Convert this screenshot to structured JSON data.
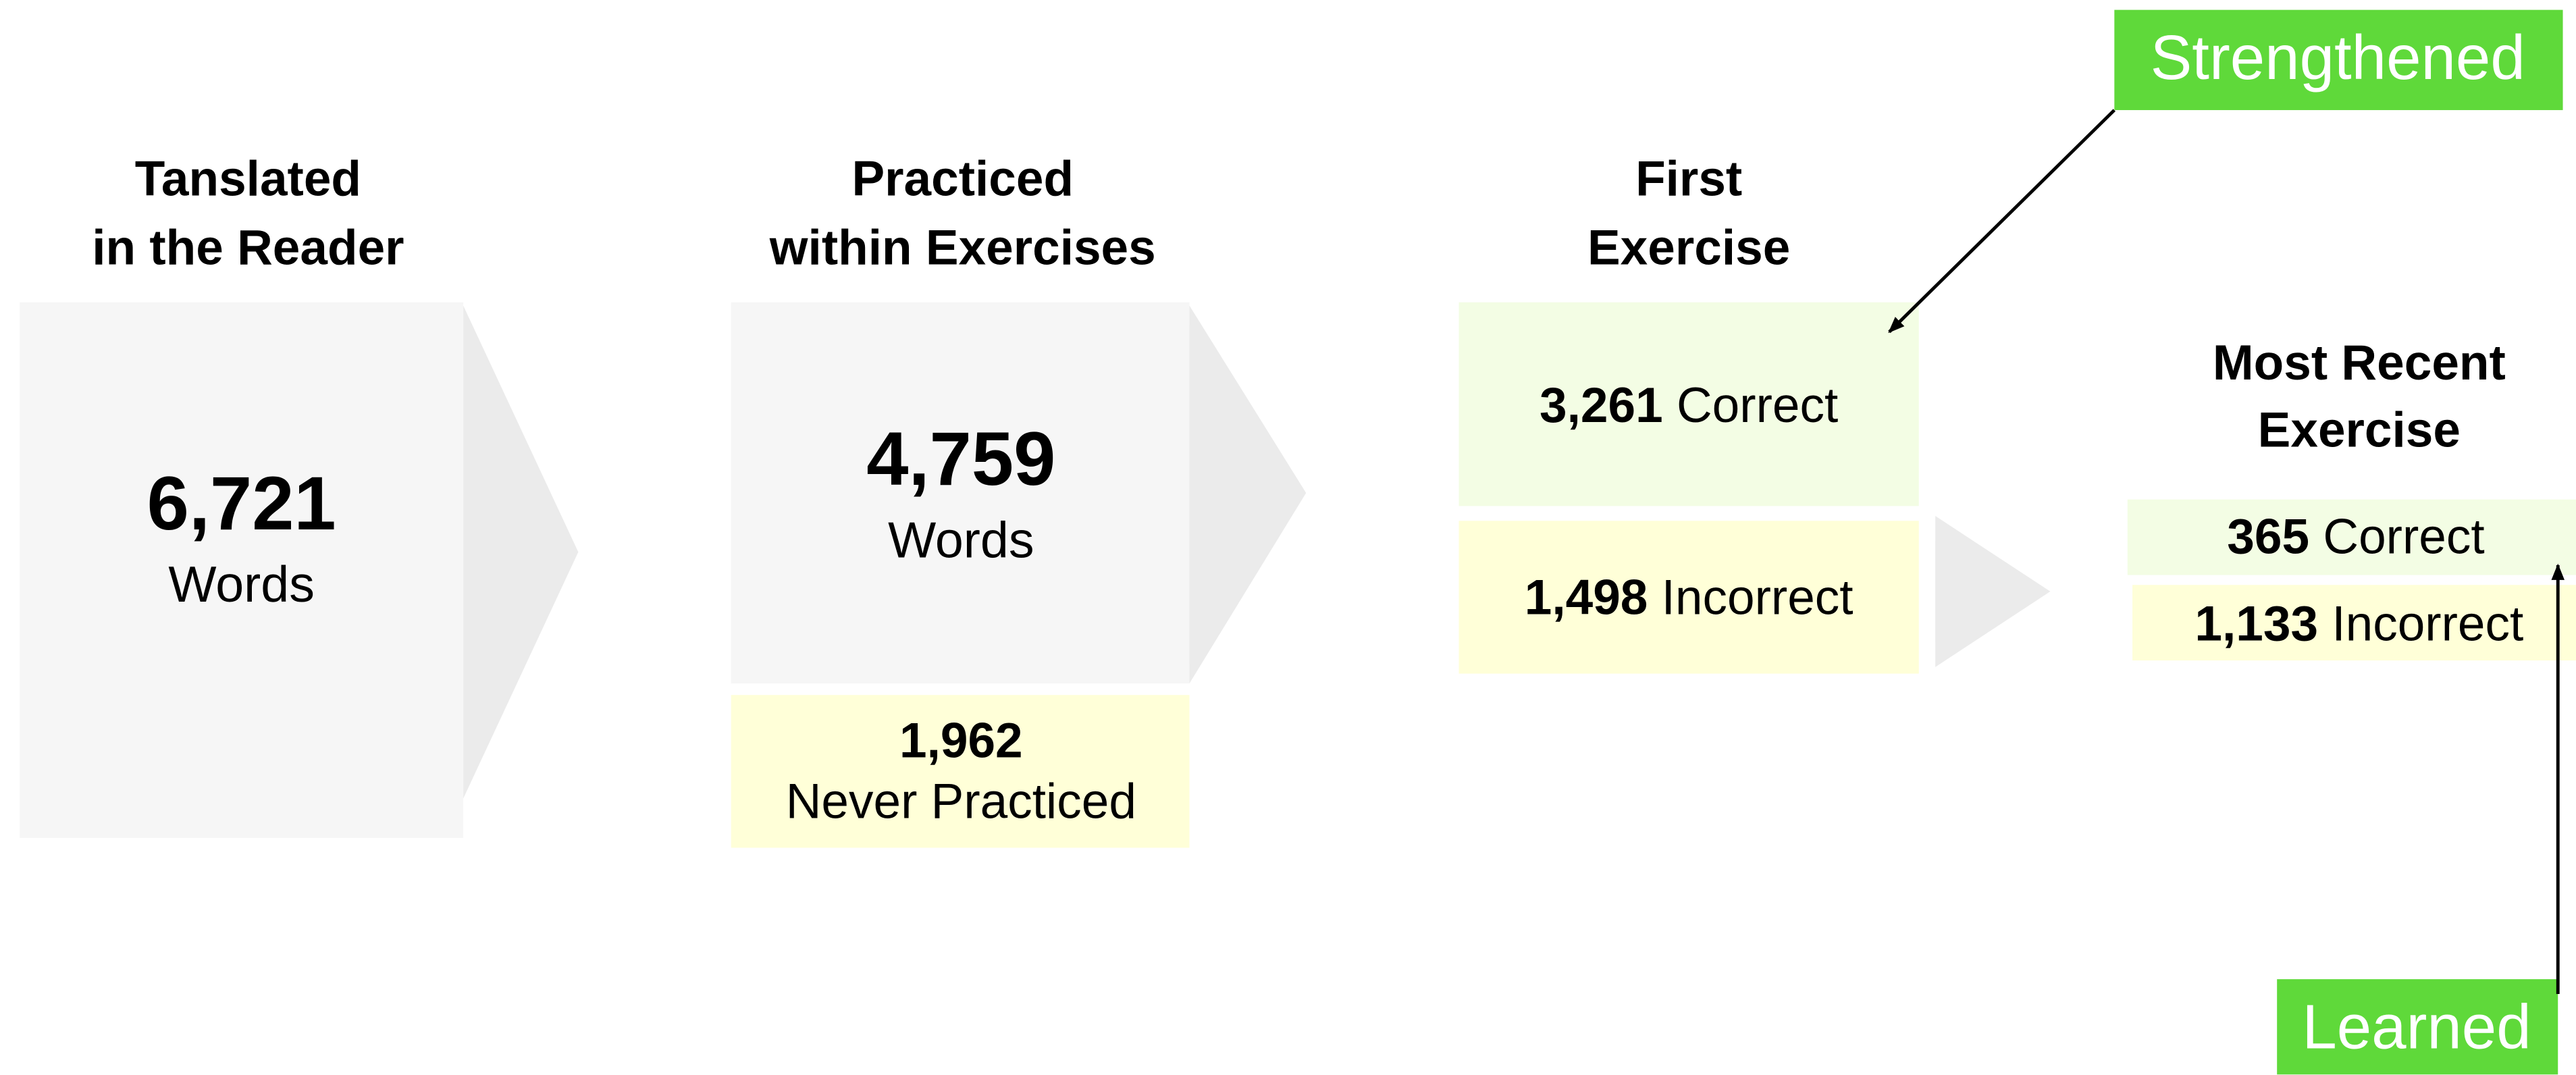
{
  "stages": [
    {
      "title": [
        "Tanslated",
        "in the Reader"
      ],
      "count": "6,721",
      "unit": "Words"
    },
    {
      "title": [
        "Practiced",
        "within Exercises"
      ],
      "count": "4,759",
      "unit": "Words",
      "never": {
        "count": "1,962",
        "label": "Never Practiced"
      }
    },
    {
      "title": [
        "First",
        "Exercise"
      ],
      "correct": {
        "count": "3,261",
        "label": "Correct"
      },
      "incorrect": {
        "count": "1,498",
        "label": "Incorrect"
      }
    },
    {
      "title": [
        "Most Recent",
        "Exercise"
      ],
      "correct": {
        "count": "365",
        "label": "Correct"
      },
      "incorrect": {
        "count": "1,133",
        "label": "Incorrect"
      }
    }
  ],
  "annotations": {
    "strengthened": "Strengthened",
    "learned": "Learned"
  }
}
